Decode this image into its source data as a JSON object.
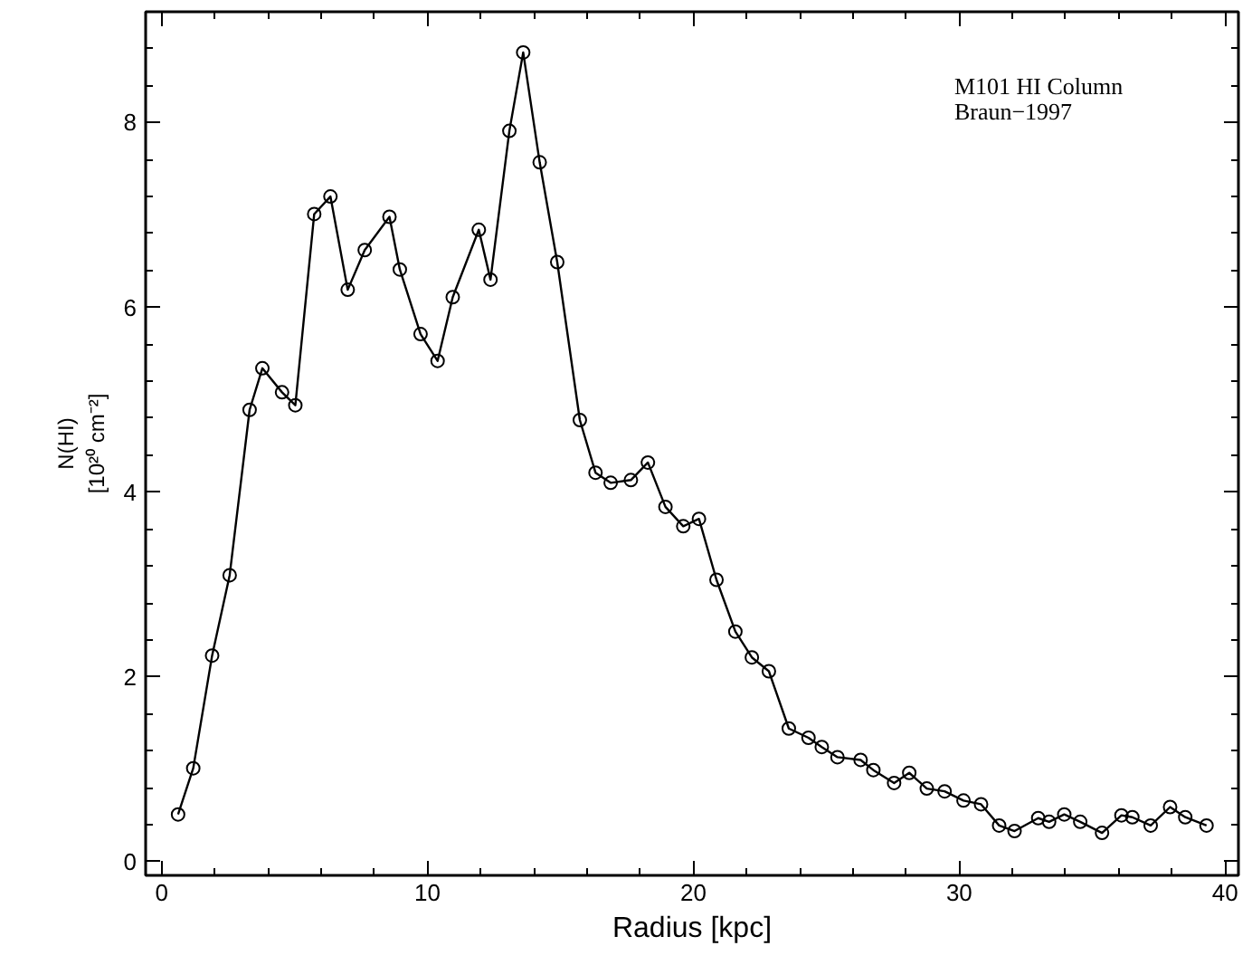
{
  "chart_data": {
    "type": "line",
    "xlabel": "Radius [kpc]",
    "ylabel": "N(HI)\n[10²⁰ cm⁻²]",
    "annotations": [
      "M101 HI Column\nBraun−1997"
    ],
    "xlim": [
      -0.6,
      40.5
    ],
    "ylim": [
      -0.15,
      9.2
    ],
    "xticks": [
      0,
      10,
      20,
      30,
      40
    ],
    "yticks": [
      0,
      2,
      4,
      6,
      8
    ],
    "grid": false,
    "marker": "circle",
    "line_style": "solid",
    "series": [
      {
        "color": "#000000",
        "x": [
          0.62,
          1.19,
          1.9,
          2.56,
          3.31,
          3.79,
          4.53,
          5.03,
          5.74,
          6.35,
          7.0,
          7.64,
          8.57,
          8.96,
          9.74,
          10.38,
          10.95,
          11.93,
          12.37,
          13.08,
          13.6,
          14.22,
          14.88,
          15.73,
          16.32,
          16.89,
          17.65,
          18.29,
          18.95,
          19.62,
          20.21,
          20.87,
          21.58,
          22.2,
          22.84,
          23.59,
          24.33,
          24.83,
          25.42,
          26.29,
          26.77,
          27.55,
          28.12,
          28.78,
          29.45,
          30.16,
          30.82,
          31.5,
          32.08,
          32.97,
          33.38,
          33.95,
          34.55,
          35.37,
          36.1,
          36.51,
          37.2,
          37.93,
          38.5,
          39.3
        ],
        "values": [
          0.51,
          1.01,
          2.23,
          3.1,
          4.89,
          5.34,
          5.08,
          4.94,
          7.01,
          7.2,
          6.19,
          6.62,
          6.98,
          6.41,
          5.71,
          5.42,
          6.11,
          6.84,
          6.3,
          7.91,
          8.76,
          7.57,
          6.49,
          4.78,
          4.21,
          4.1,
          4.13,
          4.32,
          3.84,
          3.63,
          3.71,
          3.05,
          2.49,
          2.21,
          2.06,
          1.44,
          1.34,
          1.24,
          1.13,
          1.1,
          0.99,
          0.85,
          0.96,
          0.79,
          0.76,
          0.66,
          0.62,
          0.39,
          0.33,
          0.47,
          0.43,
          0.51,
          0.43,
          0.31,
          0.5,
          0.48,
          0.39,
          0.59,
          0.48,
          0.39
        ]
      }
    ]
  }
}
